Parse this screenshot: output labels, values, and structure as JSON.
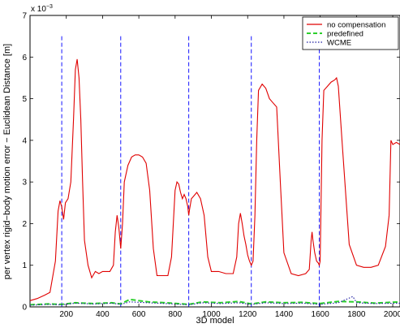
{
  "chart_data": {
    "type": "line",
    "title": "",
    "xlabel": "3D model",
    "ylabel": "per vertex rigid−body motion error − Euclidean Distance [m]",
    "y_exponent_label": "x 10",
    "y_exponent_power": "−3",
    "xlim": [
      0,
      2040
    ],
    "ylim": [
      0,
      7
    ],
    "xticks": [
      200,
      400,
      600,
      800,
      1000,
      1200,
      1400,
      1600,
      1800,
      2000
    ],
    "xtick_labels": [
      "200",
      "400",
      "600",
      "800",
      "1000",
      "1200",
      "1400",
      "1600",
      "1800",
      "2000"
    ],
    "yticks": [
      0,
      1,
      2,
      3,
      4,
      5,
      6,
      7
    ],
    "ytick_labels": [
      "0",
      "1",
      "2",
      "3",
      "4",
      "5",
      "6",
      "7"
    ],
    "grid": false,
    "legend_position": "top-right",
    "vertical_markers": [
      175,
      500,
      875,
      1220,
      1595
    ],
    "series": [
      {
        "name": "no compensation",
        "color": "#e00000",
        "style": "solid",
        "x": [
          0,
          40,
          80,
          110,
          140,
          155,
          165,
          175,
          185,
          195,
          210,
          225,
          240,
          250,
          260,
          270,
          280,
          290,
          300,
          320,
          340,
          360,
          380,
          400,
          440,
          460,
          470,
          480,
          490,
          500,
          510,
          520,
          540,
          560,
          580,
          600,
          620,
          640,
          660,
          680,
          700,
          720,
          740,
          760,
          780,
          800,
          810,
          820,
          830,
          840,
          850,
          860,
          870,
          875,
          880,
          890,
          900,
          920,
          940,
          960,
          980,
          1000,
          1040,
          1080,
          1120,
          1140,
          1150,
          1160,
          1170,
          1180,
          1190,
          1200,
          1210,
          1220,
          1230,
          1240,
          1250,
          1260,
          1280,
          1300,
          1320,
          1340,
          1360,
          1380,
          1400,
          1440,
          1480,
          1520,
          1540,
          1550,
          1555,
          1560,
          1570,
          1580,
          1590,
          1595,
          1600,
          1610,
          1620,
          1640,
          1660,
          1680,
          1690,
          1700,
          1720,
          1760,
          1800,
          1840,
          1880,
          1920,
          1960,
          1980,
          1990,
          2000,
          2020,
          2040
        ],
        "y": [
          0.15,
          0.2,
          0.28,
          0.35,
          1.1,
          2.3,
          2.55,
          2.4,
          2.1,
          2.5,
          2.6,
          3.0,
          4.5,
          5.7,
          5.95,
          5.5,
          4.5,
          3.0,
          1.6,
          1.0,
          0.7,
          0.85,
          0.8,
          0.85,
          0.85,
          1.0,
          1.8,
          2.2,
          1.9,
          1.4,
          2.0,
          3.0,
          3.4,
          3.6,
          3.65,
          3.65,
          3.6,
          3.45,
          2.8,
          1.4,
          0.75,
          0.75,
          0.75,
          0.75,
          1.2,
          2.8,
          3.0,
          2.95,
          2.75,
          2.6,
          2.7,
          2.6,
          2.4,
          2.2,
          2.35,
          2.6,
          2.65,
          2.75,
          2.6,
          2.2,
          1.2,
          0.85,
          0.85,
          0.8,
          0.8,
          1.2,
          2.0,
          2.25,
          2.0,
          1.7,
          1.5,
          1.25,
          1.1,
          1.0,
          1.1,
          2.2,
          4.0,
          5.2,
          5.35,
          5.25,
          5.0,
          4.9,
          4.8,
          3.0,
          1.3,
          0.8,
          0.75,
          0.8,
          0.9,
          1.6,
          1.8,
          1.6,
          1.3,
          1.1,
          1.05,
          1.0,
          1.1,
          4.0,
          5.2,
          5.3,
          5.4,
          5.45,
          5.5,
          5.3,
          4.0,
          1.5,
          1.0,
          0.95,
          0.95,
          1.0,
          1.45,
          2.2,
          4.0,
          3.9,
          3.95,
          3.9
        ]
      },
      {
        "name": "predefined",
        "color": "#2ccf2c",
        "style": "dashed",
        "x": [
          0,
          100,
          175,
          250,
          350,
          450,
          500,
          550,
          650,
          750,
          875,
          950,
          1050,
          1150,
          1220,
          1300,
          1400,
          1500,
          1595,
          1700,
          1800,
          1900,
          2040
        ],
        "y": [
          0.05,
          0.07,
          0.06,
          0.1,
          0.08,
          0.1,
          0.07,
          0.18,
          0.12,
          0.1,
          0.06,
          0.12,
          0.1,
          0.13,
          0.07,
          0.12,
          0.1,
          0.11,
          0.08,
          0.13,
          0.12,
          0.09,
          0.12
        ]
      },
      {
        "name": "WCME",
        "color": "#1a1aa0",
        "style": "dotted",
        "x": [
          0,
          100,
          175,
          250,
          350,
          450,
          500,
          550,
          650,
          750,
          875,
          950,
          1050,
          1150,
          1220,
          1300,
          1400,
          1500,
          1595,
          1700,
          1780,
          1800,
          1900,
          2040
        ],
        "y": [
          0.04,
          0.06,
          0.05,
          0.09,
          0.07,
          0.09,
          0.06,
          0.12,
          0.1,
          0.08,
          0.05,
          0.1,
          0.08,
          0.1,
          0.06,
          0.1,
          0.08,
          0.09,
          0.06,
          0.1,
          0.25,
          0.1,
          0.08,
          0.09
        ]
      }
    ]
  }
}
